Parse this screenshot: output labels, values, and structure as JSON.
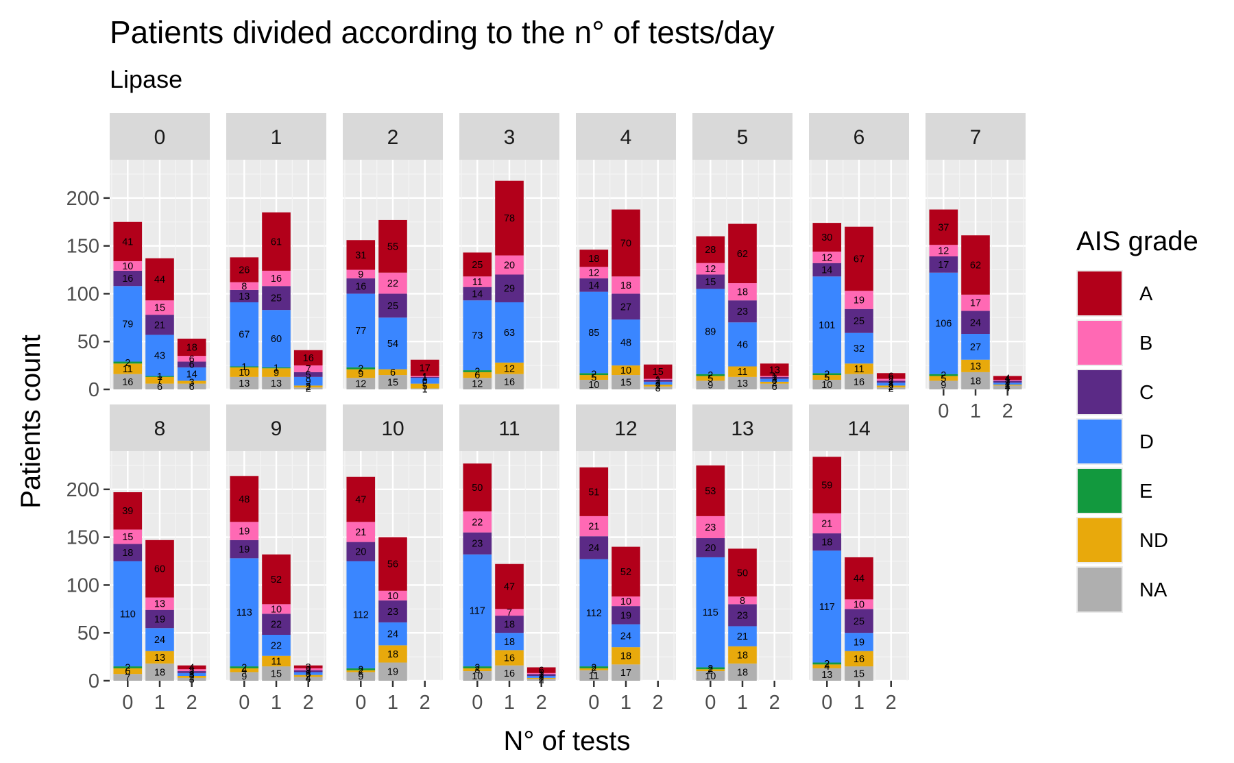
{
  "chart_data": {
    "type": "bar",
    "stacked": true,
    "faceted": true,
    "title": "Patients divided according to the n° of tests/day",
    "subtitle": "Lipase",
    "xlabel": "N° of tests",
    "ylabel": "Patients count",
    "x_categories": [
      "0",
      "1",
      "2"
    ],
    "y_ticks": [
      0,
      50,
      100,
      150,
      200
    ],
    "ylim": [
      0,
      240
    ],
    "grid": true,
    "legend": {
      "title": "AIS grade",
      "position": "right",
      "items": [
        {
          "name": "A",
          "color": "#B2001A"
        },
        {
          "name": "B",
          "color": "#FF69B4"
        },
        {
          "name": "C",
          "color": "#5B2A86"
        },
        {
          "name": "D",
          "color": "#3A86FF"
        },
        {
          "name": "E",
          "color": "#12993E"
        },
        {
          "name": "ND",
          "color": "#E8A90C"
        },
        {
          "name": "NA",
          "color": "#AFAFAF"
        }
      ]
    },
    "stack_order_bottom_to_top": [
      "NA",
      "ND",
      "E",
      "D",
      "C",
      "B",
      "A"
    ],
    "panels": [
      {
        "label": "0",
        "bars": [
          {
            "x": "0",
            "NA": 16,
            "ND": 11,
            "E": 2,
            "D": 79,
            "C": 16,
            "B": 10,
            "A": 41
          },
          {
            "x": "1",
            "NA": 6,
            "ND": 7,
            "E": 1,
            "D": 43,
            "C": 21,
            "B": 15,
            "A": 44
          },
          {
            "x": "2",
            "NA": 6,
            "ND": 3,
            "E": 0,
            "D": 14,
            "C": 6,
            "B": 6,
            "A": 18
          }
        ]
      },
      {
        "label": "1",
        "bars": [
          {
            "x": "0",
            "NA": 13,
            "ND": 10,
            "E": 1,
            "D": 67,
            "C": 13,
            "B": 8,
            "A": 26
          },
          {
            "x": "1",
            "NA": 13,
            "ND": 9,
            "E": 1,
            "D": 60,
            "C": 25,
            "B": 16,
            "A": 61
          },
          {
            "x": "2",
            "NA": 2,
            "ND": 2,
            "E": 0,
            "D": 9,
            "C": 5,
            "B": 7,
            "A": 16
          }
        ]
      },
      {
        "label": "2",
        "bars": [
          {
            "x": "0",
            "NA": 12,
            "ND": 9,
            "E": 2,
            "D": 77,
            "C": 16,
            "B": 9,
            "A": 31
          },
          {
            "x": "1",
            "NA": 15,
            "ND": 6,
            "E": 0,
            "D": 54,
            "C": 25,
            "B": 22,
            "A": 55
          },
          {
            "x": "2",
            "NA": 1,
            "ND": 5,
            "E": 0,
            "D": 6,
            "C": 1,
            "B": 1,
            "A": 17
          }
        ]
      },
      {
        "label": "3",
        "bars": [
          {
            "x": "0",
            "NA": 12,
            "ND": 6,
            "E": 2,
            "D": 73,
            "C": 14,
            "B": 11,
            "A": 25
          },
          {
            "x": "1",
            "NA": 16,
            "ND": 12,
            "E": 0,
            "D": 63,
            "C": 29,
            "B": 20,
            "A": 78
          },
          {
            "x": "2"
          }
        ]
      },
      {
        "label": "4",
        "bars": [
          {
            "x": "0",
            "NA": 10,
            "ND": 5,
            "E": 2,
            "D": 85,
            "C": 14,
            "B": 12,
            "A": 18
          },
          {
            "x": "1",
            "NA": 15,
            "ND": 10,
            "E": 0,
            "D": 48,
            "C": 27,
            "B": 18,
            "A": 70
          },
          {
            "x": "2",
            "NA": 3,
            "ND": 2,
            "E": 0,
            "D": 3,
            "C": 2,
            "B": 1,
            "A": 15
          }
        ]
      },
      {
        "label": "5",
        "bars": [
          {
            "x": "0",
            "NA": 9,
            "ND": 5,
            "E": 2,
            "D": 89,
            "C": 15,
            "B": 12,
            "A": 28
          },
          {
            "x": "1",
            "NA": 13,
            "ND": 11,
            "E": 0,
            "D": 46,
            "C": 23,
            "B": 18,
            "A": 62
          },
          {
            "x": "2",
            "NA": 6,
            "ND": 2,
            "E": 0,
            "D": 3,
            "C": 2,
            "B": 1,
            "A": 13
          }
        ]
      },
      {
        "label": "6",
        "bars": [
          {
            "x": "0",
            "NA": 10,
            "ND": 5,
            "E": 2,
            "D": 101,
            "C": 14,
            "B": 12,
            "A": 30
          },
          {
            "x": "1",
            "NA": 16,
            "ND": 11,
            "E": 0,
            "D": 32,
            "C": 25,
            "B": 19,
            "A": 67
          },
          {
            "x": "2",
            "NA": 2,
            "ND": 2,
            "E": 0,
            "D": 3,
            "C": 2,
            "B": 2,
            "A": 6
          }
        ]
      },
      {
        "label": "7",
        "bars": [
          {
            "x": "0",
            "NA": 9,
            "ND": 5,
            "E": 2,
            "D": 106,
            "C": 17,
            "B": 12,
            "A": 37
          },
          {
            "x": "1",
            "NA": 18,
            "ND": 13,
            "E": 0,
            "D": 27,
            "C": 24,
            "B": 17,
            "A": 62
          },
          {
            "x": "2",
            "NA": 4,
            "ND": 1,
            "E": 0,
            "D": 2,
            "C": 2,
            "B": 1,
            "A": 4
          }
        ]
      },
      {
        "label": "8",
        "bars": [
          {
            "x": "0",
            "NA": 7,
            "ND": 6,
            "E": 2,
            "D": 110,
            "C": 18,
            "B": 15,
            "A": 39
          },
          {
            "x": "1",
            "NA": 18,
            "ND": 13,
            "E": 0,
            "D": 24,
            "C": 19,
            "B": 13,
            "A": 60
          },
          {
            "x": "2",
            "NA": 3,
            "ND": 2,
            "E": 0,
            "D": 3,
            "C": 2,
            "B": 2,
            "A": 4
          }
        ]
      },
      {
        "label": "9",
        "bars": [
          {
            "x": "0",
            "NA": 9,
            "ND": 4,
            "E": 2,
            "D": 113,
            "C": 19,
            "B": 19,
            "A": 48
          },
          {
            "x": "1",
            "NA": 15,
            "ND": 11,
            "E": 0,
            "D": 22,
            "C": 22,
            "B": 10,
            "A": 52
          },
          {
            "x": "2",
            "NA": 4,
            "ND": 2,
            "E": 0,
            "D": 3,
            "C": 2,
            "B": 2,
            "A": 3
          }
        ]
      },
      {
        "label": "10",
        "bars": [
          {
            "x": "0",
            "NA": 9,
            "ND": 2,
            "E": 2,
            "D": 112,
            "C": 20,
            "B": 21,
            "A": 47
          },
          {
            "x": "1",
            "NA": 19,
            "ND": 18,
            "E": 0,
            "D": 24,
            "C": 23,
            "B": 10,
            "A": 56
          },
          {
            "x": "2"
          }
        ]
      },
      {
        "label": "11",
        "bars": [
          {
            "x": "0",
            "NA": 10,
            "ND": 3,
            "E": 2,
            "D": 117,
            "C": 23,
            "B": 22,
            "A": 50
          },
          {
            "x": "1",
            "NA": 16,
            "ND": 16,
            "E": 0,
            "D": 18,
            "C": 18,
            "B": 7,
            "A": 47
          },
          {
            "x": "2",
            "NA": 2,
            "ND": 1,
            "E": 0,
            "D": 2,
            "C": 2,
            "B": 1,
            "A": 6
          }
        ]
      },
      {
        "label": "12",
        "bars": [
          {
            "x": "0",
            "NA": 11,
            "ND": 2,
            "E": 2,
            "D": 112,
            "C": 24,
            "B": 21,
            "A": 51
          },
          {
            "x": "1",
            "NA": 17,
            "ND": 18,
            "E": 0,
            "D": 24,
            "C": 19,
            "B": 10,
            "A": 52
          },
          {
            "x": "2"
          }
        ]
      },
      {
        "label": "13",
        "bars": [
          {
            "x": "0",
            "NA": 10,
            "ND": 2,
            "E": 2,
            "D": 115,
            "C": 20,
            "B": 23,
            "A": 53
          },
          {
            "x": "1",
            "NA": 18,
            "ND": 18,
            "E": 0,
            "D": 21,
            "C": 23,
            "B": 8,
            "A": 50
          },
          {
            "x": "2"
          }
        ]
      },
      {
        "label": "14",
        "bars": [
          {
            "x": "0",
            "NA": 13,
            "ND": 4,
            "E": 2,
            "D": 117,
            "C": 18,
            "B": 21,
            "A": 59
          },
          {
            "x": "1",
            "NA": 15,
            "ND": 16,
            "E": 0,
            "D": 19,
            "C": 25,
            "B": 10,
            "A": 44
          },
          {
            "x": "2"
          }
        ]
      }
    ]
  }
}
